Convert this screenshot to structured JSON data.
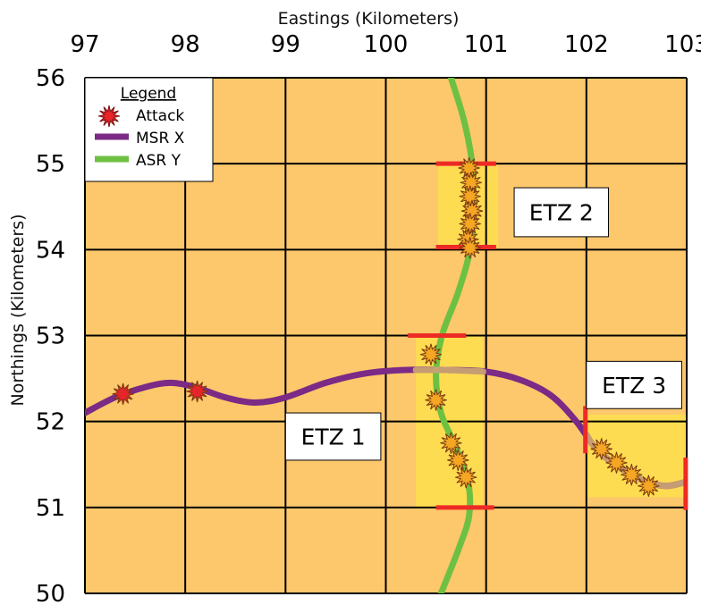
{
  "chart_data": {
    "type": "scatter",
    "xlabel": "Eastings (Kilometers)",
    "ylabel": "Northings (Kilometers)",
    "xlim": [
      97,
      103
    ],
    "ylim": [
      50,
      56
    ],
    "x_ticks": [
      "97",
      "98",
      "99",
      "100",
      "101",
      "102",
      "103"
    ],
    "y_ticks": [
      "50",
      "51",
      "52",
      "53",
      "54",
      "55",
      "56"
    ],
    "grid": true,
    "legend_position": "top-left",
    "legend": {
      "title": "Legend",
      "entries": [
        {
          "label": "Attack",
          "symbol": "attack-star",
          "color": "#e8242b"
        },
        {
          "label": "MSR X",
          "symbol": "line",
          "color": "#7b2a86"
        },
        {
          "label": "ASR Y",
          "symbol": "line",
          "color": "#6ec043"
        }
      ]
    },
    "routes": [
      {
        "label": "MSR X",
        "color": "#7b2a86",
        "points": [
          [
            97.0,
            52.1
          ],
          [
            97.3,
            52.28
          ],
          [
            97.6,
            52.4
          ],
          [
            97.85,
            52.45
          ],
          [
            98.1,
            52.4
          ],
          [
            98.4,
            52.28
          ],
          [
            98.7,
            52.22
          ],
          [
            99.0,
            52.28
          ],
          [
            99.4,
            52.45
          ],
          [
            99.8,
            52.56
          ],
          [
            100.2,
            52.6
          ],
          [
            100.6,
            52.6
          ],
          [
            101.0,
            52.58
          ],
          [
            101.35,
            52.48
          ],
          [
            101.65,
            52.3
          ],
          [
            101.9,
            52.0
          ],
          [
            102.1,
            51.68
          ],
          [
            102.35,
            51.45
          ],
          [
            102.6,
            51.3
          ],
          [
            102.8,
            51.25
          ],
          [
            103.0,
            51.3
          ]
        ]
      },
      {
        "label": "ASR Y",
        "color": "#6ec043",
        "points": [
          [
            100.65,
            56.0
          ],
          [
            100.78,
            55.5
          ],
          [
            100.86,
            55.0
          ],
          [
            100.87,
            54.5
          ],
          [
            100.84,
            54.0
          ],
          [
            100.72,
            53.5
          ],
          [
            100.56,
            53.0
          ],
          [
            100.5,
            52.55
          ],
          [
            100.55,
            52.1
          ],
          [
            100.7,
            51.7
          ],
          [
            100.82,
            51.3
          ],
          [
            100.83,
            50.9
          ],
          [
            100.72,
            50.5
          ],
          [
            100.55,
            50.0
          ]
        ]
      }
    ],
    "attacks": [
      {
        "x": 97.38,
        "y": 52.32,
        "zone": ""
      },
      {
        "x": 98.12,
        "y": 52.35,
        "zone": ""
      },
      {
        "x": 100.45,
        "y": 52.78,
        "zone": "ETZ 1"
      },
      {
        "x": 100.5,
        "y": 52.25,
        "zone": "ETZ 1"
      },
      {
        "x": 100.65,
        "y": 51.75,
        "zone": "ETZ 1"
      },
      {
        "x": 100.72,
        "y": 51.55,
        "zone": "ETZ 1"
      },
      {
        "x": 100.8,
        "y": 51.35,
        "zone": "ETZ 1"
      },
      {
        "x": 100.83,
        "y": 54.95,
        "zone": "ETZ 2"
      },
      {
        "x": 100.85,
        "y": 54.78,
        "zone": "ETZ 2"
      },
      {
        "x": 100.84,
        "y": 54.62,
        "zone": "ETZ 2"
      },
      {
        "x": 100.86,
        "y": 54.45,
        "zone": "ETZ 2"
      },
      {
        "x": 100.84,
        "y": 54.3,
        "zone": "ETZ 2"
      },
      {
        "x": 100.82,
        "y": 54.12,
        "zone": "ETZ 2"
      },
      {
        "x": 100.84,
        "y": 54.02,
        "zone": "ETZ 2"
      },
      {
        "x": 102.15,
        "y": 51.68,
        "zone": "ETZ 3"
      },
      {
        "x": 102.3,
        "y": 51.52,
        "zone": "ETZ 3"
      },
      {
        "x": 102.45,
        "y": 51.38,
        "zone": "ETZ 3"
      },
      {
        "x": 102.62,
        "y": 51.25,
        "zone": "ETZ 3"
      }
    ],
    "zones": [
      {
        "label": "ETZ 1",
        "rect": {
          "x0": 100.3,
          "x1": 100.97,
          "y0": 51.0,
          "y1": 53.0
        },
        "label_anchor": [
          99.0,
          51.55,
          99.95,
          52.1
        ],
        "bars": [
          {
            "x0": 100.22,
            "x1": 100.8,
            "y0": 53.0,
            "y1": 53.0
          },
          {
            "x0": 100.5,
            "x1": 101.08,
            "y0": 51.0,
            "y1": 51.0
          }
        ],
        "highlight_segment": [
          [
            100.3,
            52.6
          ],
          [
            100.6,
            52.6
          ],
          [
            100.97,
            52.58
          ]
        ]
      },
      {
        "label": "ETZ 2",
        "rect": {
          "x0": 100.52,
          "x1": 101.12,
          "y0": 54.0,
          "y1": 55.0
        },
        "label_anchor": [
          101.28,
          54.15,
          102.22,
          54.72
        ],
        "bars": [
          {
            "x0": 100.5,
            "x1": 101.1,
            "y0": 55.0,
            "y1": 55.0
          },
          {
            "x0": 100.5,
            "x1": 101.1,
            "y0": 54.03,
            "y1": 54.03
          }
        ],
        "highlight_segment": []
      },
      {
        "label": "ETZ 3",
        "rect": {
          "x0": 102.0,
          "x1": 103.0,
          "y0": 51.12,
          "y1": 52.08
        },
        "label_anchor": [
          102.0,
          52.15,
          102.95,
          52.7
        ],
        "bars": [
          {
            "x0": 101.99,
            "x1": 101.99,
            "y0": 51.63,
            "y1": 52.18
          },
          {
            "x0": 102.99,
            "x1": 102.99,
            "y0": 50.97,
            "y1": 51.58
          }
        ],
        "highlight_segment": [
          [
            102.0,
            51.85
          ],
          [
            102.1,
            51.68
          ],
          [
            102.35,
            51.45
          ],
          [
            102.6,
            51.3
          ],
          [
            102.8,
            51.25
          ],
          [
            103.0,
            51.3
          ]
        ]
      }
    ]
  }
}
